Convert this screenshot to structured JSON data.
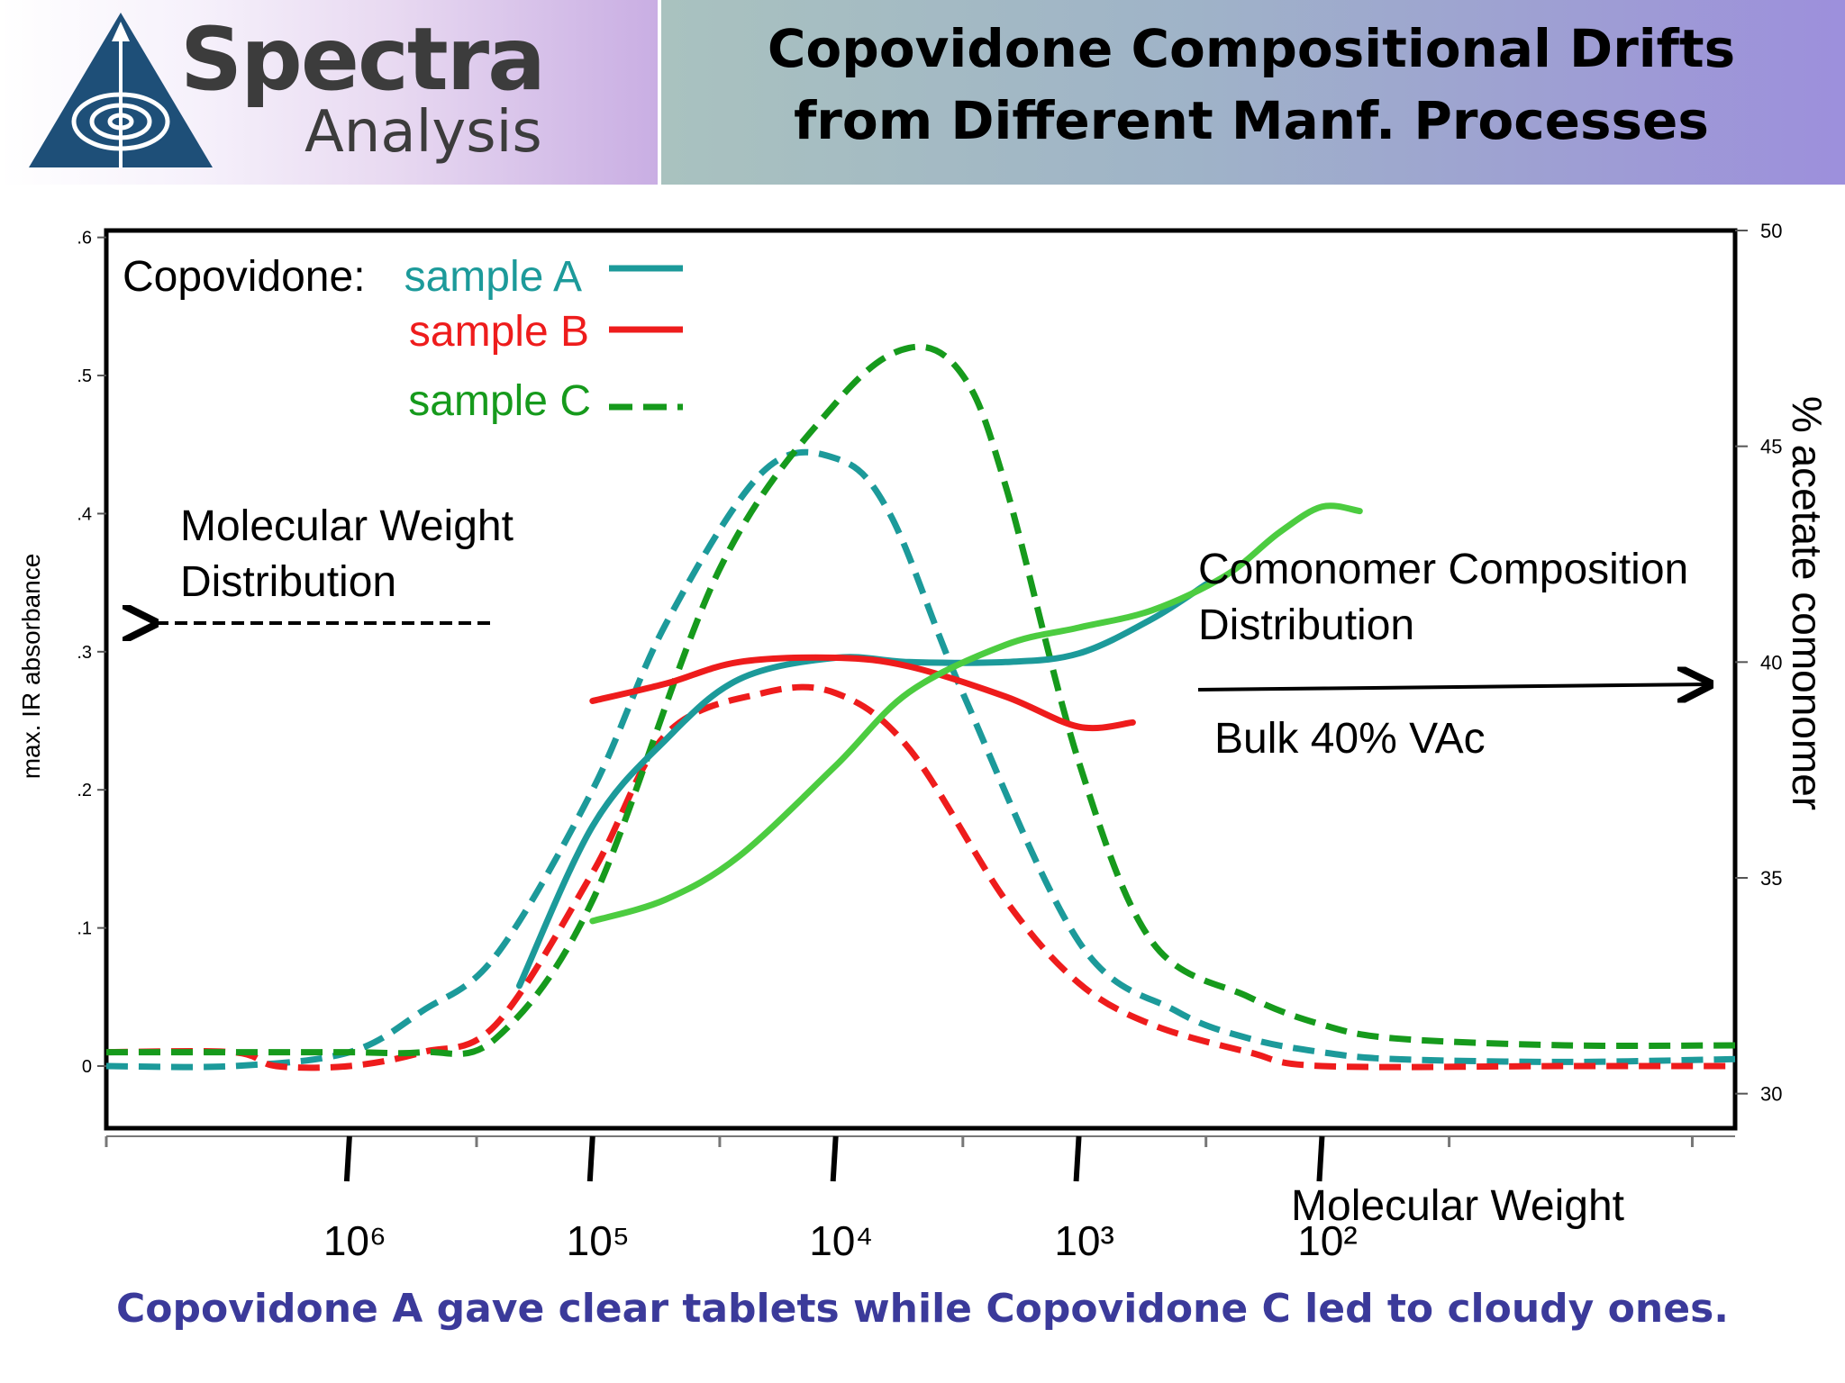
{
  "header": {
    "logo_word1": "Spectra",
    "logo_word2": "Analysis",
    "title_line1": "Copovidone Compositional Drifts",
    "title_line2": "from Different  Manf. Processes"
  },
  "caption": "Copovidone A gave clear tablets while Copovidone C led to cloudy ones.",
  "annotations": {
    "legend_prefix": "Copovidone:",
    "mw_dist_line1": "Molecular Weight",
    "mw_dist_line2": "Distribution",
    "comonomer_line1": "Comonomer Composition",
    "comonomer_line2": "Distribution",
    "bulk": "Bulk 40% VAc"
  },
  "colors": {
    "sample_a": "#1c9a9a",
    "sample_b": "#ee1c1c",
    "sample_c_dashed": "#169a1c",
    "sample_c_solid": "#4ccc40",
    "caption": "#3b3a9a"
  },
  "chart_data": {
    "type": "line",
    "xlabel": "Molecular Weight",
    "ylabel_left": "max. IR absorbance",
    "ylabel_right": "% acetate comonomer",
    "x_scale": "log, decreasing left to right",
    "x_ticks": [
      "10^6",
      "10^5",
      "10^4",
      "10^3",
      "10^2"
    ],
    "x_tick_values": [
      1000000,
      100000,
      10000,
      1000,
      100
    ],
    "ylim_left": [
      -0.045,
      0.605
    ],
    "yticks_left": [
      0,
      0.1,
      0.2,
      0.3,
      0.4,
      0.5,
      0.6
    ],
    "yticks_left_labels": [
      "0",
      ".1",
      ".2",
      ".3",
      ".4",
      ".5",
      ".6"
    ],
    "ylim_right": [
      29.2,
      50
    ],
    "yticks_right": [
      30,
      35,
      40,
      45,
      50
    ],
    "legend": {
      "placement": "top-left",
      "entries": [
        {
          "label": "sample A",
          "color": "#1c9a9a"
        },
        {
          "label": "sample B",
          "color": "#ee1c1c"
        },
        {
          "label": "sample C",
          "color": "#169a1c"
        }
      ]
    },
    "series": [
      {
        "name": "sample A",
        "kind": "Molecular Weight Distribution",
        "axis": "left",
        "style": "dashed",
        "color": "#1c9a9a",
        "x": [
          10000000,
          3000000,
          1000000,
          500000,
          250000,
          100000,
          50000,
          20000,
          10000,
          6000,
          3000,
          1000,
          400,
          200,
          100,
          50,
          10,
          2
        ],
        "y": [
          0.0,
          0.0,
          0.01,
          0.04,
          0.08,
          0.2,
          0.32,
          0.43,
          0.44,
          0.4,
          0.27,
          0.09,
          0.04,
          0.02,
          0.01,
          0.005,
          0.003,
          0.005
        ]
      },
      {
        "name": "sample B",
        "kind": "Molecular Weight Distribution",
        "axis": "left",
        "style": "dashed",
        "color": "#ee1c1c",
        "x": [
          10000000,
          3000000,
          2000000,
          1000000,
          500000,
          250000,
          100000,
          50000,
          20000,
          10000,
          5000,
          2000,
          1000,
          500,
          200,
          100,
          10,
          2
        ],
        "y": [
          0.01,
          0.01,
          0.0,
          0.0,
          0.01,
          0.03,
          0.14,
          0.24,
          0.27,
          0.27,
          0.23,
          0.12,
          0.06,
          0.03,
          0.01,
          0.0,
          0.0,
          0.0
        ]
      },
      {
        "name": "sample C",
        "kind": "Molecular Weight Distribution",
        "axis": "left",
        "style": "dashed",
        "color": "#169a1c",
        "x": [
          10000000,
          3000000,
          1000000,
          500000,
          250000,
          100000,
          30000,
          10000,
          5000,
          3000,
          2000,
          1000,
          500,
          200,
          100,
          50,
          10,
          2
        ],
        "y": [
          0.01,
          0.01,
          0.01,
          0.01,
          0.02,
          0.12,
          0.36,
          0.48,
          0.52,
          0.5,
          0.42,
          0.22,
          0.09,
          0.05,
          0.03,
          0.02,
          0.015,
          0.015
        ]
      },
      {
        "name": "sample A",
        "kind": "Comonomer Composition Distribution",
        "axis": "right",
        "style": "solid",
        "color": "#1c9a9a",
        "x": [
          200000,
          100000,
          50000,
          25000,
          10000,
          5000,
          2000,
          1000,
          500,
          300
        ],
        "y": [
          32.5,
          36.2,
          38.2,
          39.6,
          40.1,
          40.0,
          40.0,
          40.2,
          41.0,
          41.8
        ]
      },
      {
        "name": "sample B",
        "kind": "Comonomer Composition Distribution",
        "axis": "right",
        "style": "solid",
        "color": "#ee1c1c",
        "x": [
          100000,
          50000,
          25000,
          10000,
          5000,
          2000,
          1000,
          600
        ],
        "y": [
          39.1,
          39.5,
          40.0,
          40.1,
          39.9,
          39.2,
          38.5,
          38.6
        ]
      },
      {
        "name": "sample C",
        "kind": "Comonomer Composition Distribution",
        "axis": "right",
        "style": "solid",
        "color": "#4ccc40",
        "x": [
          100000,
          50000,
          25000,
          10000,
          5000,
          2000,
          1000,
          500,
          250,
          150,
          100,
          70
        ],
        "y": [
          34.0,
          34.5,
          35.5,
          37.6,
          39.3,
          40.4,
          40.8,
          41.2,
          42.0,
          43.0,
          43.6,
          43.5
        ]
      }
    ]
  }
}
